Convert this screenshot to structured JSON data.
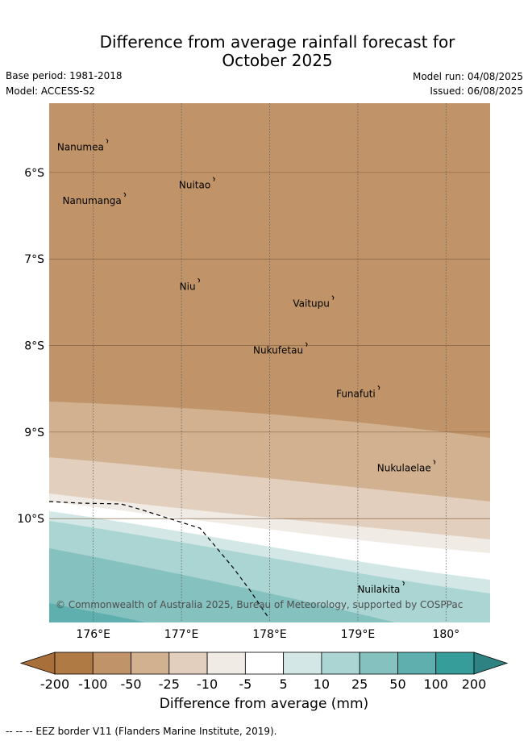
{
  "title_line1": "Difference from average rainfall forecast for",
  "title_line2": "October 2025",
  "base_period": "Base period: 1981-2018",
  "model": "Model: ACCESS-S2",
  "model_run": "Model run: 04/08/2025",
  "issued": "Issued: 06/08/2025",
  "map": {
    "lon_range": [
      175.5,
      180.5
    ],
    "lat_range": [
      -11.2,
      -5.2
    ],
    "lat_ticks": [
      {
        "value": -6,
        "label": "6°S"
      },
      {
        "value": -7,
        "label": "7°S"
      },
      {
        "value": -8,
        "label": "8°S"
      },
      {
        "value": -9,
        "label": "9°S"
      },
      {
        "value": -10,
        "label": "10°S"
      }
    ],
    "lon_ticks": [
      {
        "value": 176,
        "label": "176°E"
      },
      {
        "value": 177,
        "label": "177°E"
      },
      {
        "value": 178,
        "label": "178°E"
      },
      {
        "value": 179,
        "label": "179°E"
      },
      {
        "value": 180,
        "label": "180°"
      }
    ],
    "places": [
      {
        "name": "Nanumea",
        "lon": 176.12,
        "lat": -5.67
      },
      {
        "name": "Nuitao",
        "lon": 177.33,
        "lat": -6.11
      },
      {
        "name": "Nanumanga",
        "lon": 176.32,
        "lat": -6.29
      },
      {
        "name": "Niu",
        "lon": 177.16,
        "lat": -7.28
      },
      {
        "name": "Vaitupu",
        "lon": 178.68,
        "lat": -7.48
      },
      {
        "name": "Nukufetau",
        "lon": 178.38,
        "lat": -8.02
      },
      {
        "name": "Funafuti",
        "lon": 179.2,
        "lat": -8.52
      },
      {
        "name": "Nukulaelae",
        "lon": 179.83,
        "lat": -9.38
      },
      {
        "name": "Nuilakita",
        "lon": 179.48,
        "lat": -10.78
      }
    ],
    "copyright": "© Commonwealth of Australia 2025, Bureau of Meteorology, supported by COSPPac"
  },
  "legend": {
    "labels": [
      "-200",
      "-100",
      "-50",
      "-25",
      "-10",
      "-5",
      "5",
      "10",
      "25",
      "50",
      "100",
      "200"
    ],
    "colors": [
      "#a86f3a",
      "#b07a44",
      "#c09468",
      "#d2b190",
      "#e3cfbd",
      "#f0ebe5",
      "#ffffff",
      "#d3e8e6",
      "#aad5d3",
      "#84c1bf",
      "#5eafad",
      "#379d9b",
      "#2e8282"
    ],
    "title": "Difference from average (mm)"
  },
  "footer": "-- -- -- EEZ border V11 (Flanders Marine Institute, 2019)."
}
